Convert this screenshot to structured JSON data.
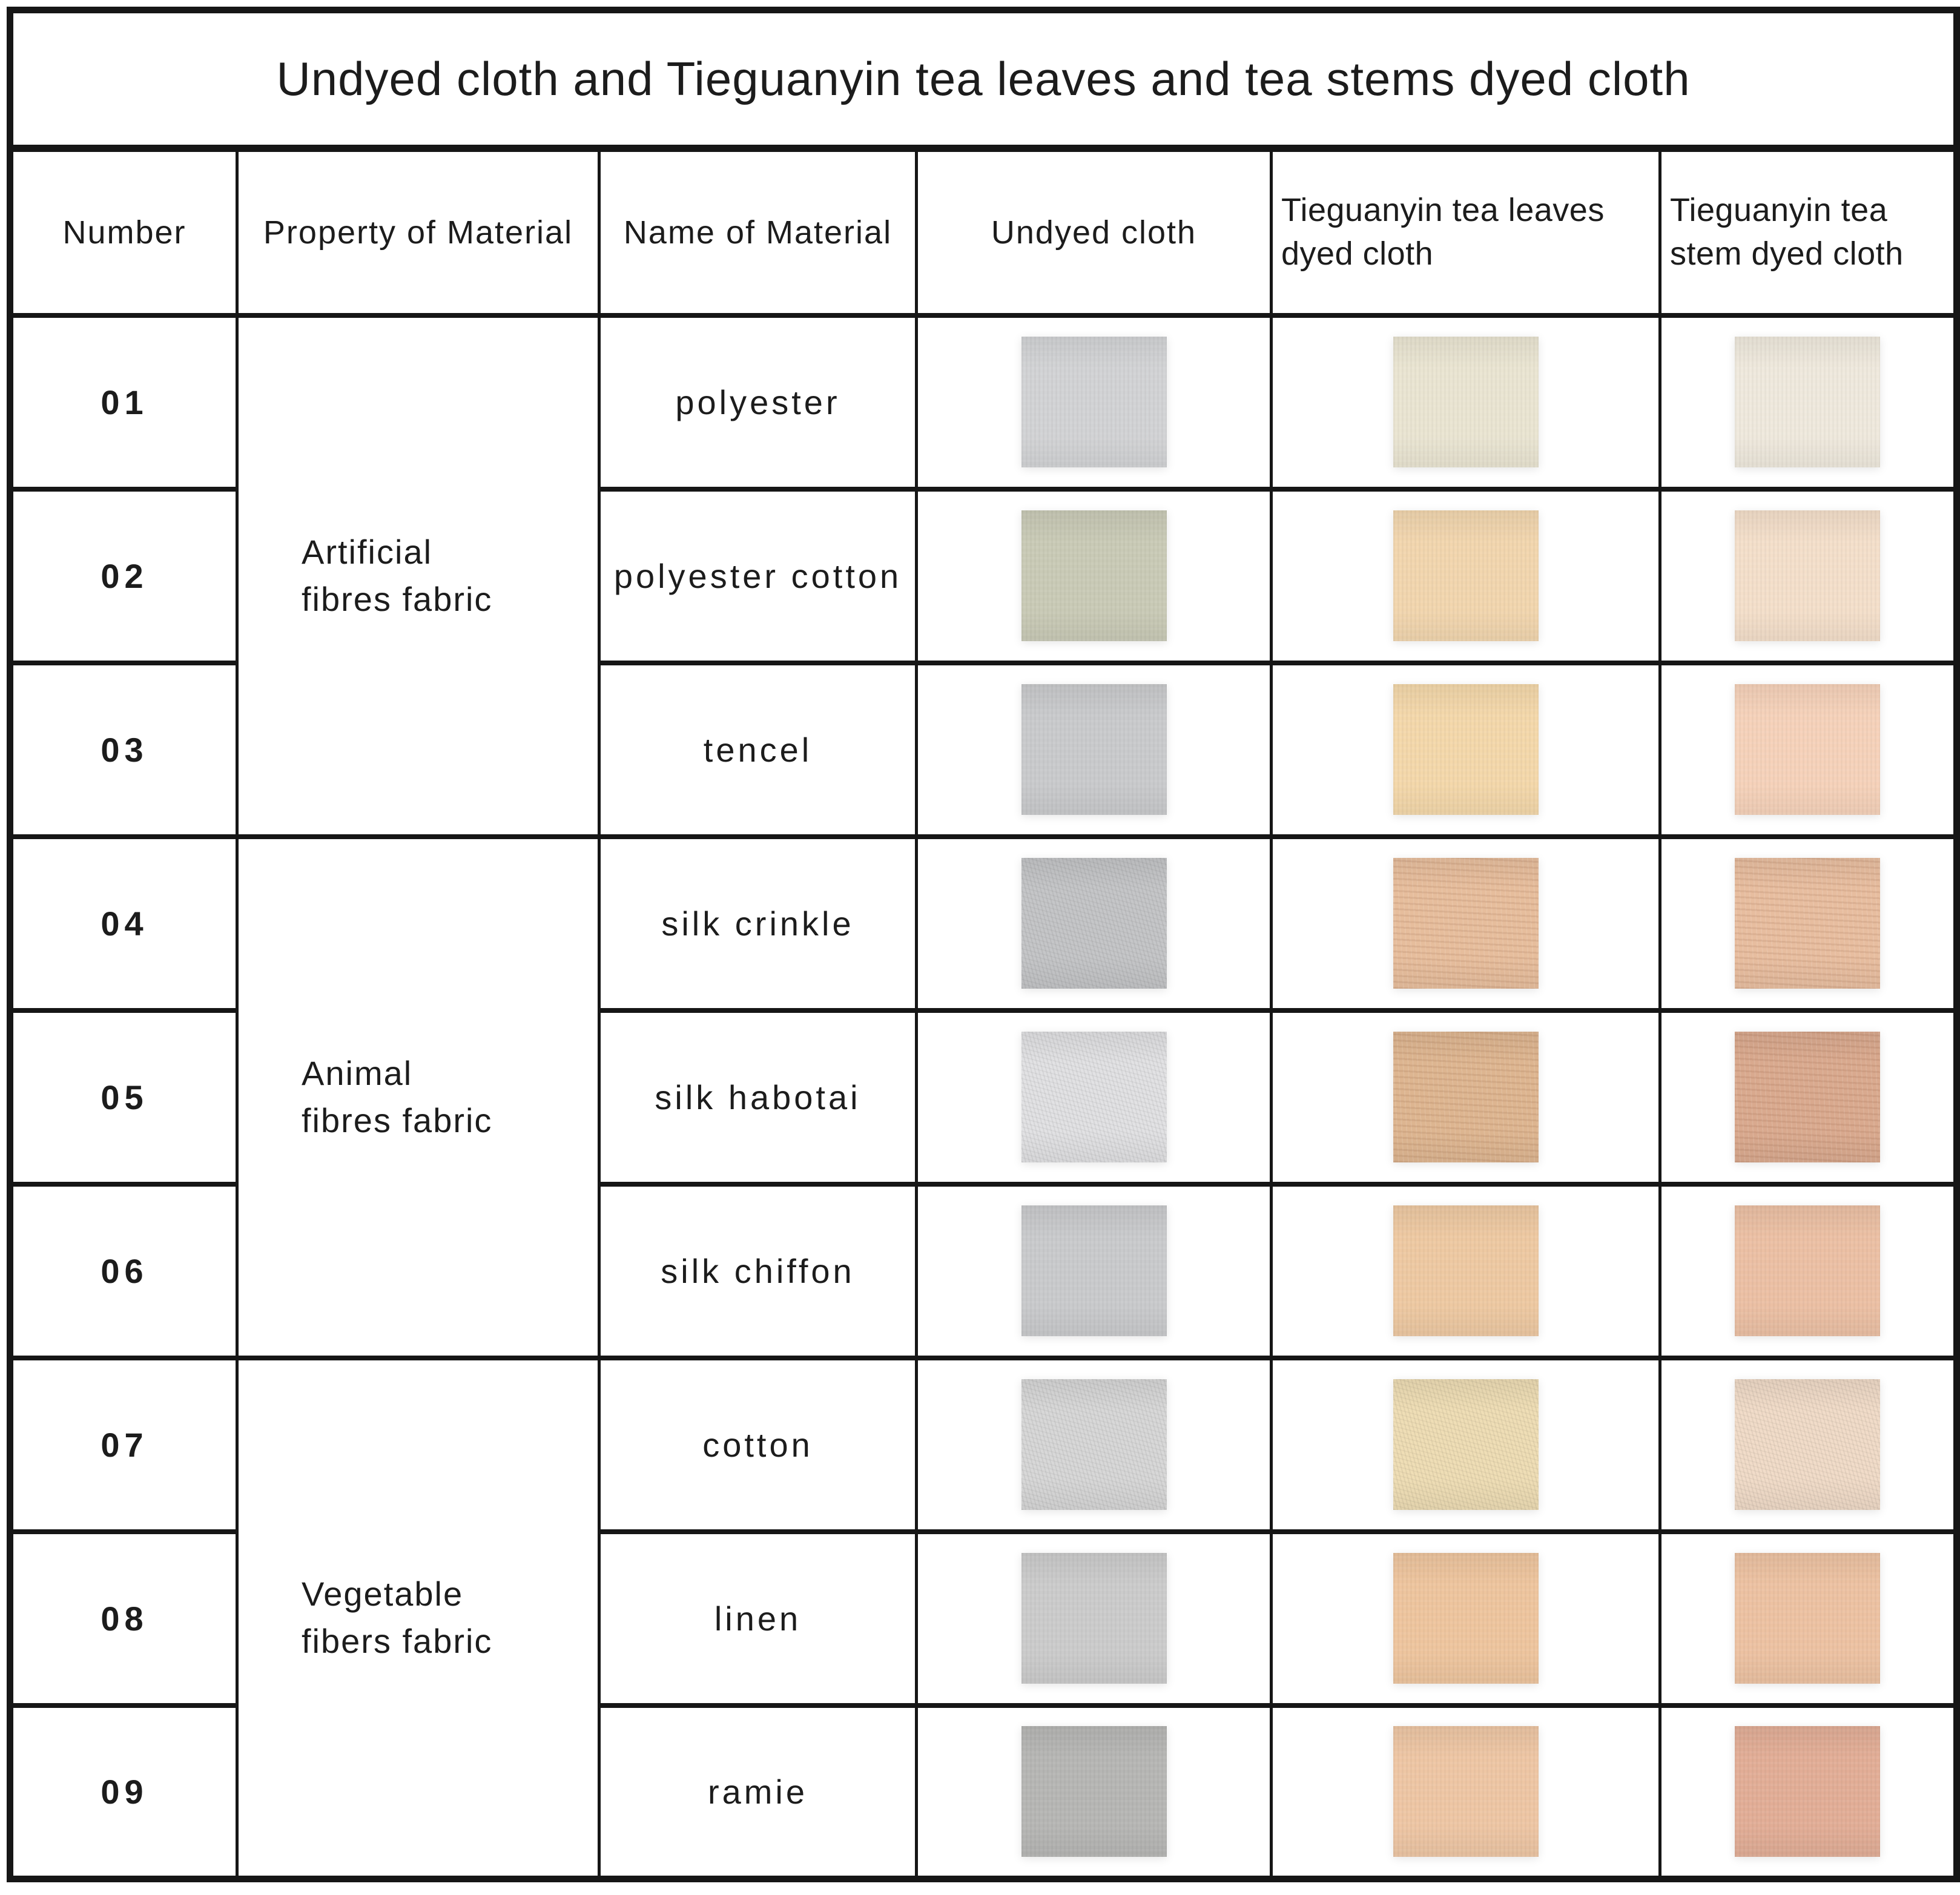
{
  "title": "Undyed cloth and Tieguanyin tea leaves and tea stems dyed cloth",
  "columns": {
    "number": "Number",
    "property": "Property of Material",
    "name": "Name of Material",
    "undyed": "Undyed cloth",
    "leaves": "Tieguanyin tea leaves dyed cloth",
    "stem": "Tieguanyin tea stem dyed cloth"
  },
  "groups": [
    {
      "property_line1": "Artificial",
      "property_line2": "fibres fabric"
    },
    {
      "property_line1": "Animal",
      "property_line2": "fibres fabric"
    },
    {
      "property_line1": "Vegetable",
      "property_line2": "fibers fabric"
    }
  ],
  "rows": [
    {
      "number": "01",
      "material": "polyester",
      "colors": {
        "undyed": "#d2d3d5",
        "leaves": "#eae5d2",
        "stem": "#efe9dd"
      }
    },
    {
      "number": "02",
      "material": "polyester cotton",
      "colors": {
        "undyed": "#c9cab6",
        "leaves": "#f2d6ae",
        "stem": "#f4dfca"
      }
    },
    {
      "number": "03",
      "material": "tencel",
      "colors": {
        "undyed": "#c9cacc",
        "leaves": "#f4d8aa",
        "stem": "#f6d2ba"
      }
    },
    {
      "number": "04",
      "material": "silk crinkle",
      "colors": {
        "undyed": "#c5c6c8",
        "leaves": "#e6bd9c",
        "stem": "#e7bd9f"
      }
    },
    {
      "number": "05",
      "material": "silk habotai",
      "colors": {
        "undyed": "#e2e2e4",
        "leaves": "#ddb590",
        "stem": "#d9a98e"
      }
    },
    {
      "number": "06",
      "material": "silk chiffon",
      "colors": {
        "undyed": "#c9cacc",
        "leaves": "#eec9a2",
        "stem": "#ecc0a4"
      }
    },
    {
      "number": "07",
      "material": "cotton",
      "colors": {
        "undyed": "#d8d8d8",
        "leaves": "#efdeb6",
        "stem": "#f1dcc9"
      }
    },
    {
      "number": "08",
      "material": "linen",
      "colors": {
        "undyed": "#cbcbcb",
        "leaves": "#eec59e",
        "stem": "#edc2a2"
      }
    },
    {
      "number": "09",
      "material": "ramie",
      "colors": {
        "undyed": "#b6b6b4",
        "leaves": "#eec6a4",
        "stem": "#e2ad96"
      }
    }
  ],
  "border_color": "#161616"
}
